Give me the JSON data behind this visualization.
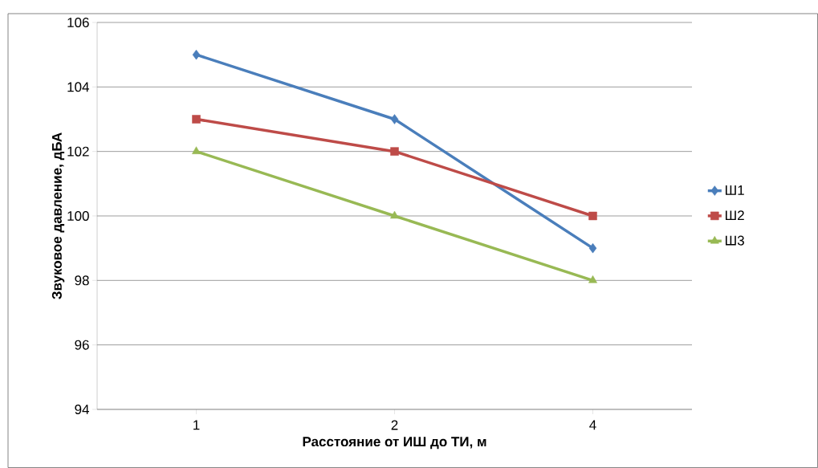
{
  "chart_data": {
    "type": "line",
    "xlabel": "Расстояние от ИШ до ТИ, м",
    "ylabel": "Звуковое давление, дБА",
    "categories": [
      "1",
      "2",
      "4"
    ],
    "series": [
      {
        "name": "Ш1",
        "color": "#4a7ebb",
        "marker": "diamond",
        "values": [
          105,
          103,
          99
        ]
      },
      {
        "name": "Ш2",
        "color": "#be4b48",
        "marker": "square",
        "values": [
          103,
          102,
          100
        ]
      },
      {
        "name": "Ш3",
        "color": "#98b954",
        "marker": "triangle",
        "values": [
          102,
          100,
          98
        ]
      }
    ],
    "ylim": [
      94,
      106
    ],
    "yticks": [
      94,
      96,
      98,
      100,
      102,
      104,
      106
    ],
    "grid": "y",
    "legend": "right"
  }
}
